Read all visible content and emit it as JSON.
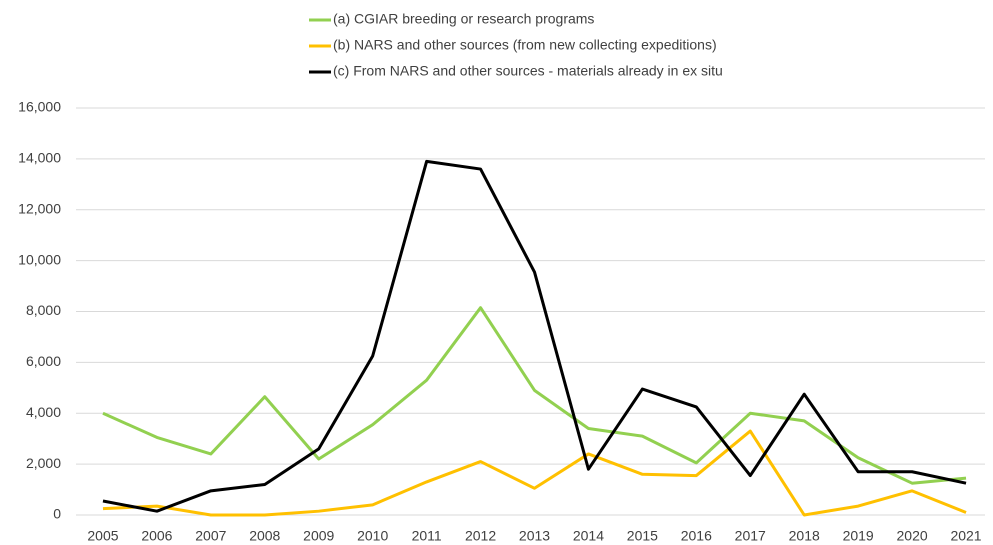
{
  "chart_data": {
    "type": "line",
    "categories": [
      "2005",
      "2006",
      "2007",
      "2008",
      "2009",
      "2010",
      "2011",
      "2012",
      "2013",
      "2014",
      "2015",
      "2016",
      "2017",
      "2018",
      "2019",
      "2020",
      "2021"
    ],
    "series": [
      {
        "name": "(a) CGIAR breeding or research programs",
        "color": "#92d050",
        "values": [
          4000,
          3050,
          2400,
          4650,
          2200,
          3550,
          5300,
          8150,
          4900,
          3400,
          3100,
          2050,
          4000,
          3700,
          2250,
          1250,
          1450
        ]
      },
      {
        "name": "(b) NARS and other sources (from new collecting expeditions)",
        "color": "#ffc000",
        "values": [
          250,
          350,
          0,
          0,
          150,
          400,
          1300,
          2100,
          1050,
          2400,
          1600,
          1550,
          3300,
          0,
          350,
          950,
          100
        ]
      },
      {
        "name": "(c) From NARS and other sources - materials already in ex situ",
        "color": "#000000",
        "values": [
          550,
          150,
          950,
          1200,
          2600,
          6250,
          13900,
          13600,
          9550,
          1800,
          4950,
          4250,
          1550,
          4750,
          1700,
          1700,
          1250
        ]
      }
    ],
    "ylim": [
      0,
      16000
    ],
    "yticks": [
      0,
      {
        "value": 2000,
        "label": "2,000"
      },
      {
        "value": 4000,
        "label": "4,000"
      },
      {
        "value": 6000,
        "label": "6,000"
      },
      {
        "value": 8000,
        "label": "8,000"
      },
      {
        "value": 10000,
        "label": "10,000"
      },
      {
        "value": 12000,
        "label": "12,000"
      },
      {
        "value": 14000,
        "label": "14,000"
      },
      {
        "value": 16000,
        "label": "16,000"
      }
    ],
    "grid": true,
    "legend": "top"
  }
}
